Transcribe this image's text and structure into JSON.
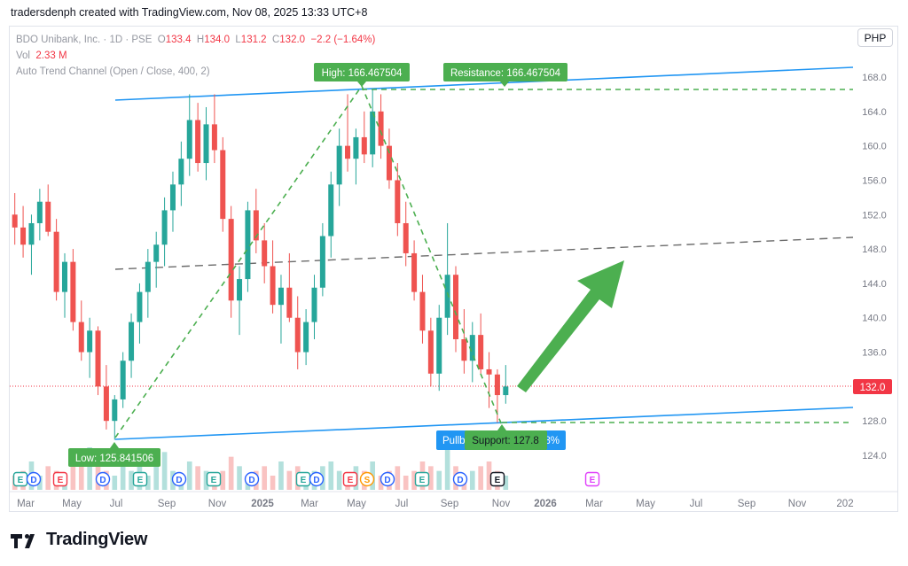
{
  "header": {
    "created_by": "tradersdenph created with TradingView.com, Nov 08, 2025 13:33 UTC+8"
  },
  "legend": {
    "symbol": "BDO Unibank, Inc. · 1D · PSE",
    "o_label": "O",
    "o_value": "133.4",
    "h_label": "H",
    "h_value": "134.0",
    "l_label": "L",
    "l_value": "131.2",
    "c_label": "C",
    "c_value": "132.0",
    "change": "−2.2 (−1.64%)",
    "vol_label": "Vol",
    "vol_value": "2.33 M",
    "indicator": "Auto Trend Channel (Open / Close, 400, 2)"
  },
  "currency_button": "PHP",
  "brand": {
    "name": "TradingView"
  },
  "colors": {
    "up": "#26a69a",
    "down": "#ef5350",
    "trend": "#2196f3",
    "green": "#4caf50",
    "midline": "#6b6b6b",
    "price": "#f23645"
  },
  "chart_data": {
    "type": "candlestick",
    "ylim": [
      121.5,
      170.5
    ],
    "y_ticks": [
      "168.0",
      "164.0",
      "160.0",
      "156.0",
      "152.0",
      "148.0",
      "144.0",
      "140.0",
      "136.0",
      "132.0",
      "128.0",
      "124.0"
    ],
    "x_ticks": [
      "Mar",
      "May",
      "Jul",
      "Sep",
      "Nov",
      "2025",
      "Mar",
      "May",
      "Jul",
      "Sep",
      "Nov",
      "2026",
      "Mar",
      "May",
      "Jul",
      "Sep",
      "Nov",
      "202"
    ],
    "last_price": "132.0",
    "labels": {
      "high": "High: 166.467504",
      "resistance": "Resistance: 166.467504",
      "low": "Low: 125.841506",
      "support": "Support: 127.8",
      "pullback_left": "Pullb",
      "pullback_right": "8%"
    },
    "candles": [
      [
        152.0,
        154.5,
        148.5,
        150.5
      ],
      [
        150.5,
        153.0,
        147.0,
        148.5
      ],
      [
        148.5,
        152.0,
        145.0,
        151.0
      ],
      [
        151.0,
        155.0,
        149.0,
        153.5
      ],
      [
        153.5,
        155.5,
        149.5,
        150.0
      ],
      [
        150.0,
        151.5,
        142.0,
        143.0
      ],
      [
        143.0,
        147.5,
        140.0,
        146.5
      ],
      [
        146.5,
        148.0,
        138.5,
        139.5
      ],
      [
        139.5,
        142.0,
        135.0,
        136.0
      ],
      [
        136.0,
        140.0,
        133.0,
        138.5
      ],
      [
        138.5,
        139.0,
        131.0,
        132.0
      ],
      [
        132.0,
        134.5,
        127.0,
        128.0
      ],
      [
        128.0,
        131.0,
        125.8,
        130.5
      ],
      [
        130.5,
        136.0,
        129.5,
        135.0
      ],
      [
        135.0,
        140.5,
        133.0,
        139.5
      ],
      [
        139.5,
        144.0,
        137.0,
        143.0
      ],
      [
        143.0,
        148.0,
        140.0,
        146.5
      ],
      [
        146.5,
        150.0,
        143.5,
        148.5
      ],
      [
        148.5,
        154.0,
        146.0,
        152.5
      ],
      [
        152.5,
        157.0,
        150.0,
        155.5
      ],
      [
        155.5,
        160.5,
        153.0,
        158.5
      ],
      [
        158.5,
        166.0,
        156.5,
        163.0
      ],
      [
        163.0,
        165.0,
        157.0,
        158.0
      ],
      [
        158.0,
        164.5,
        156.0,
        162.5
      ],
      [
        162.5,
        166.0,
        158.0,
        159.5
      ],
      [
        159.5,
        161.0,
        150.0,
        151.5
      ],
      [
        151.5,
        153.0,
        140.0,
        142.0
      ],
      [
        142.0,
        146.0,
        138.0,
        144.5
      ],
      [
        144.5,
        153.5,
        143.0,
        152.5
      ],
      [
        152.5,
        155.0,
        147.5,
        149.0
      ],
      [
        149.0,
        151.0,
        144.0,
        146.0
      ],
      [
        146.0,
        149.0,
        140.5,
        141.5
      ],
      [
        141.5,
        145.0,
        137.0,
        143.5
      ],
      [
        143.5,
        147.5,
        139.5,
        140.0
      ],
      [
        140.0,
        142.5,
        134.0,
        136.0
      ],
      [
        136.0,
        141.0,
        134.5,
        139.5
      ],
      [
        139.5,
        145.0,
        137.5,
        143.5
      ],
      [
        143.5,
        151.0,
        142.5,
        149.5
      ],
      [
        149.5,
        157.0,
        147.0,
        155.5
      ],
      [
        155.5,
        162.0,
        153.0,
        160.0
      ],
      [
        160.0,
        166.0,
        157.0,
        158.5
      ],
      [
        158.5,
        162.0,
        155.5,
        161.0
      ],
      [
        161.0,
        164.0,
        158.0,
        159.0
      ],
      [
        159.0,
        166.5,
        157.5,
        164.0
      ],
      [
        164.0,
        166.0,
        158.5,
        160.0
      ],
      [
        160.0,
        162.0,
        155.0,
        156.0
      ],
      [
        156.0,
        158.0,
        149.5,
        151.0
      ],
      [
        151.0,
        153.5,
        146.0,
        147.5
      ],
      [
        147.5,
        149.0,
        142.0,
        143.0
      ],
      [
        143.0,
        145.0,
        137.0,
        138.5
      ],
      [
        138.5,
        140.0,
        132.0,
        133.5
      ],
      [
        133.5,
        141.5,
        131.5,
        140.0
      ],
      [
        140.0,
        151.0,
        138.0,
        145.0
      ],
      [
        145.0,
        146.0,
        136.0,
        137.5
      ],
      [
        137.5,
        141.0,
        133.5,
        135.0
      ],
      [
        135.0,
        139.5,
        132.5,
        138.0
      ],
      [
        138.0,
        140.5,
        133.5,
        134.0
      ],
      [
        134.0,
        136.0,
        129.5,
        133.4
      ],
      [
        133.4,
        134.0,
        127.8,
        131.0
      ],
      [
        131.0,
        134.5,
        130.0,
        132.0
      ]
    ],
    "volume": [
      3,
      4,
      6,
      3,
      5,
      4,
      3,
      7,
      5,
      9,
      6,
      4,
      3,
      5,
      4,
      6,
      3,
      5,
      8,
      4,
      3,
      6,
      5,
      4,
      3,
      4,
      7,
      5,
      3,
      4,
      5,
      3,
      6,
      4,
      5,
      3,
      4,
      5,
      6,
      4,
      3,
      5,
      4,
      6,
      3,
      4,
      5,
      3,
      4,
      6,
      5,
      4,
      9,
      5,
      3,
      4,
      5,
      6,
      4,
      3
    ]
  }
}
